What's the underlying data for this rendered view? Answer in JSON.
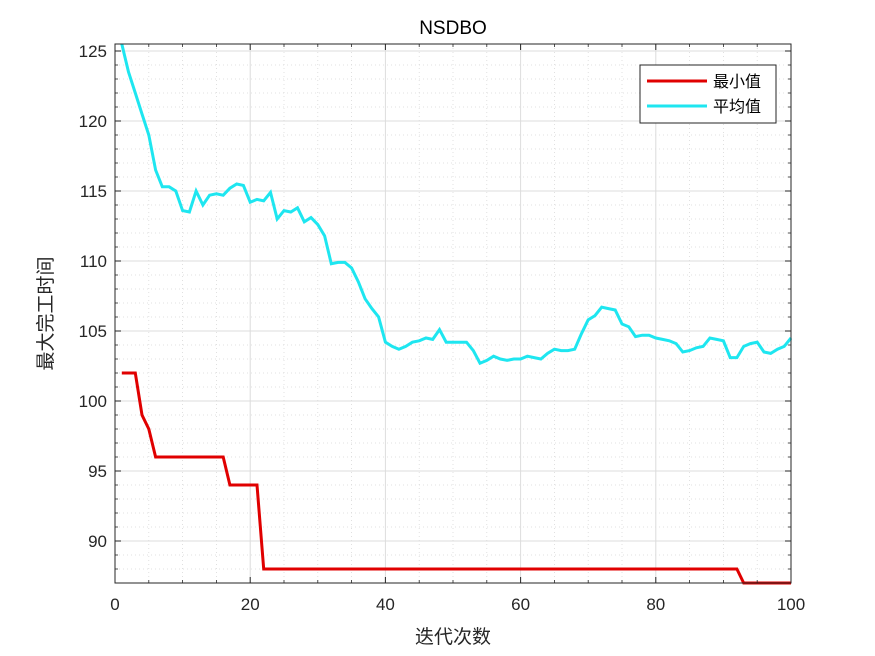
{
  "chart_data": {
    "type": "line",
    "title": "NSDBO",
    "xlabel": "迭代次数",
    "ylabel": "最大完工时间",
    "xlim": [
      0,
      100
    ],
    "ylim": [
      87,
      125.5
    ],
    "xticks": [
      0,
      20,
      40,
      60,
      80,
      100
    ],
    "yticks": [
      90,
      95,
      100,
      105,
      110,
      115,
      120,
      125
    ],
    "grid": true,
    "minor_grid": true,
    "legend_position": "top-right",
    "series": [
      {
        "name": "最小值",
        "color": "#e00000",
        "x": [
          1,
          3,
          4,
          5,
          6,
          16,
          17,
          21,
          22,
          92,
          93,
          100
        ],
        "y": [
          102,
          102,
          99,
          98,
          96,
          96,
          94,
          94,
          88,
          88,
          87,
          87
        ]
      },
      {
        "name": "平均值",
        "color": "#1ee6f0",
        "x": [
          1,
          2,
          3,
          4,
          5,
          6,
          7,
          8,
          9,
          10,
          11,
          12,
          13,
          14,
          15,
          16,
          17,
          18,
          19,
          20,
          21,
          22,
          23,
          24,
          25,
          26,
          27,
          28,
          29,
          30,
          31,
          32,
          33,
          34,
          35,
          36,
          37,
          38,
          39,
          40,
          41,
          42,
          43,
          44,
          45,
          46,
          47,
          48,
          49,
          50,
          51,
          52,
          53,
          54,
          55,
          56,
          57,
          58,
          59,
          60,
          61,
          62,
          63,
          64,
          65,
          66,
          67,
          68,
          69,
          70,
          71,
          72,
          73,
          74,
          75,
          76,
          77,
          78,
          79,
          80,
          81,
          82,
          83,
          84,
          85,
          86,
          87,
          88,
          89,
          90,
          91,
          92,
          93,
          94,
          95,
          96,
          97,
          98,
          99,
          100
        ],
        "y": [
          125.5,
          123.5,
          122,
          120.5,
          119,
          116.5,
          115.3,
          115.3,
          115.0,
          113.6,
          113.5,
          115.0,
          114.0,
          114.7,
          114.8,
          114.7,
          115.2,
          115.5,
          115.4,
          114.2,
          114.4,
          114.3,
          114.9,
          113.0,
          113.6,
          113.5,
          113.8,
          112.8,
          113.1,
          112.6,
          111.8,
          109.8,
          109.9,
          109.9,
          109.5,
          108.5,
          107.3,
          106.6,
          106.0,
          104.2,
          103.9,
          103.7,
          103.9,
          104.2,
          104.3,
          104.5,
          104.4,
          105.1,
          104.2,
          104.2,
          104.2,
          104.2,
          103.6,
          102.7,
          102.9,
          103.2,
          103.0,
          102.9,
          103.0,
          103.0,
          103.2,
          103.1,
          103.0,
          103.4,
          103.7,
          103.6,
          103.6,
          103.7,
          104.8,
          105.8,
          106.1,
          106.7,
          106.6,
          106.5,
          105.5,
          105.3,
          104.6,
          104.7,
          104.7,
          104.5,
          104.4,
          104.3,
          104.1,
          103.5,
          103.6,
          103.8,
          103.9,
          104.5,
          104.4,
          104.3,
          103.1,
          103.1,
          103.9,
          104.1,
          104.2,
          103.5,
          103.4,
          103.7,
          103.9,
          104.5
        ]
      }
    ]
  }
}
